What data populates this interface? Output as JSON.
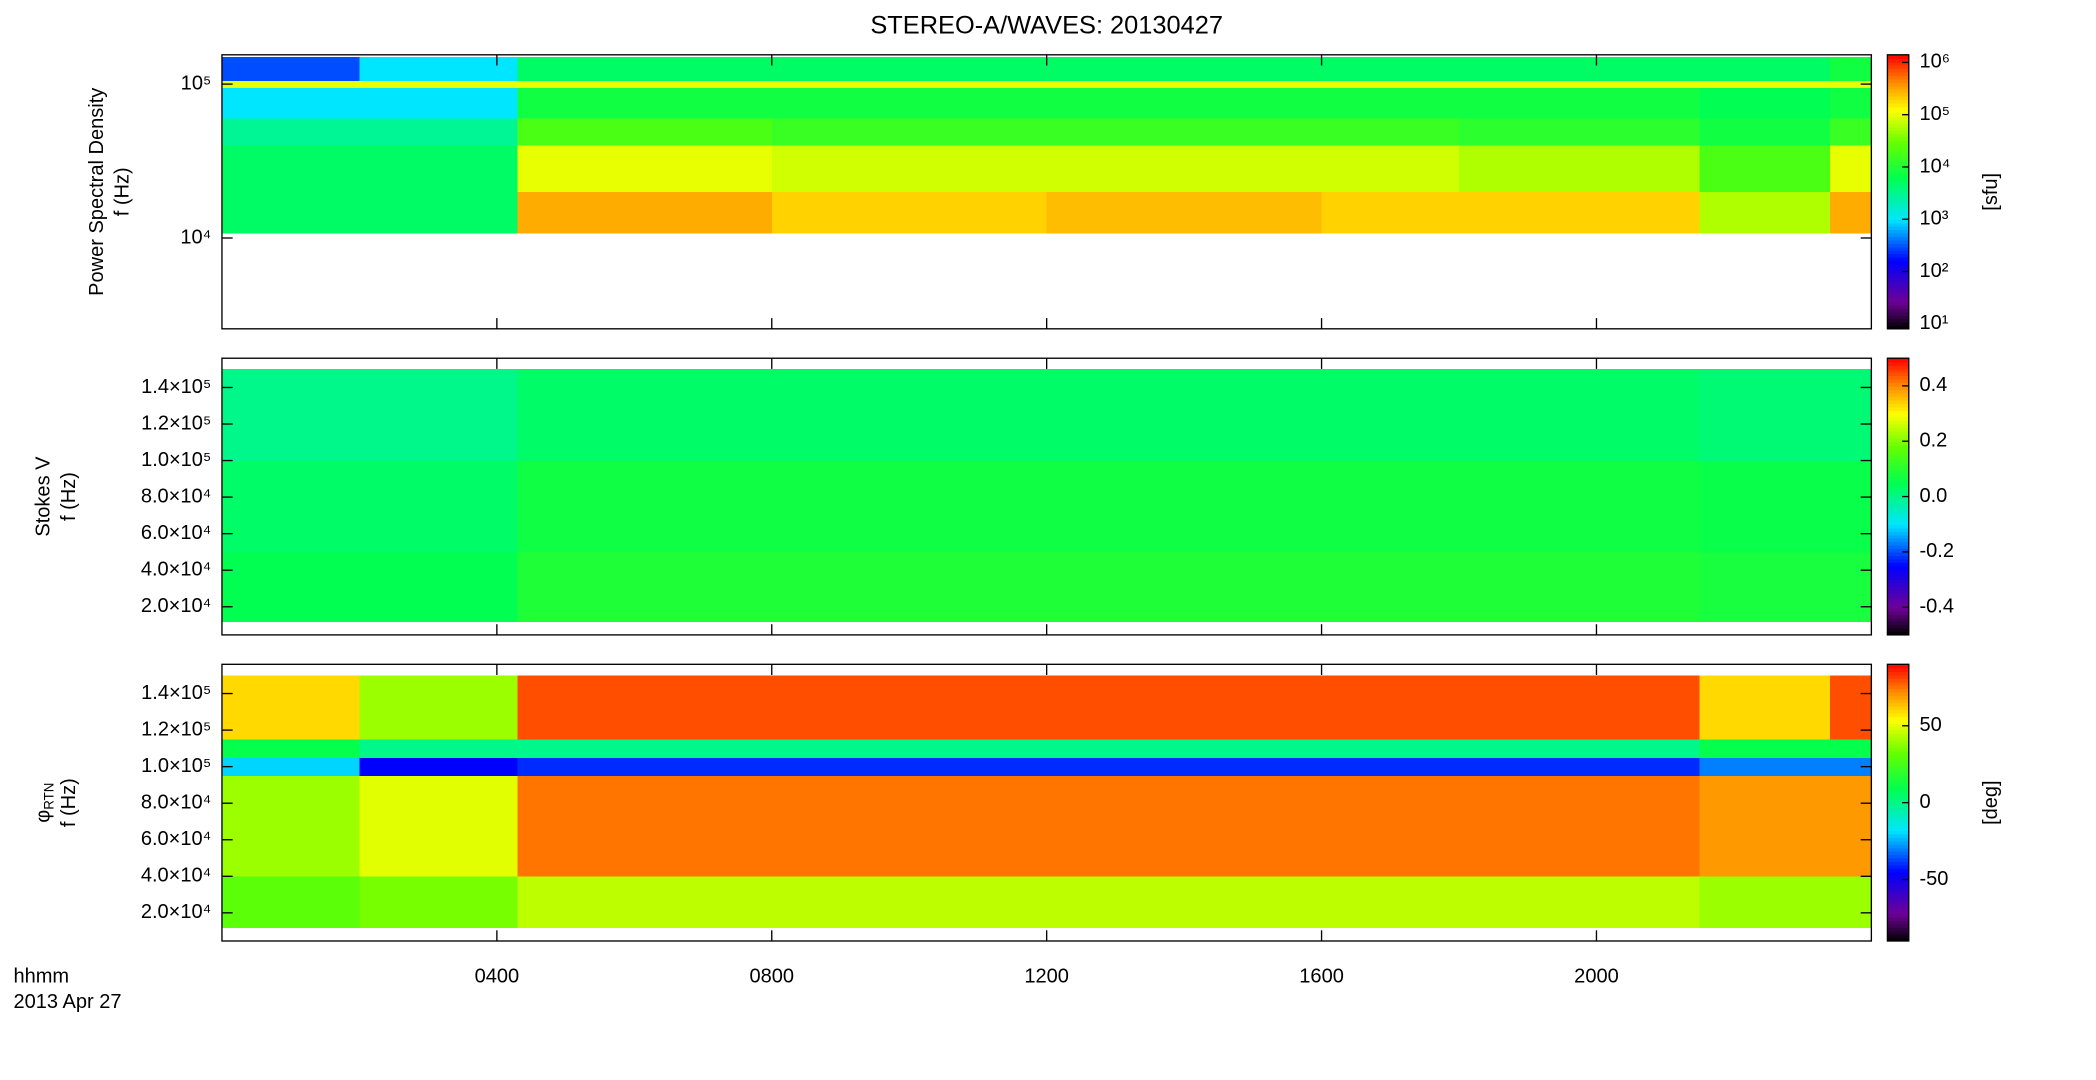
{
  "chart_data": [
    {
      "type": "spectrogram",
      "title": "STEREO-A/WAVES: 20130427",
      "ylabel": [
        "Power Spectral Density",
        "f (Hz)"
      ],
      "log_y": true,
      "ylim": [
        2570,
        155000
      ],
      "yticks": [
        {
          "value": 10000,
          "label": "10⁴"
        },
        {
          "value": 100000,
          "label": "10⁵"
        }
      ],
      "x_edges": [
        0,
        2,
        4.3,
        8,
        12,
        16,
        18,
        21.5,
        23.4,
        24
      ],
      "y_edges": [
        10800,
        20000,
        40000,
        60000,
        95000,
        105000,
        150000
      ],
      "values": [
        [
          5000,
          5000,
          300000,
          200000,
          250000,
          200000,
          200000,
          60000,
          300000
        ],
        [
          5000,
          5000,
          100000,
          80000,
          80000,
          80000,
          60000,
          20000,
          100000
        ],
        [
          3000,
          3000,
          20000,
          15000,
          15000,
          15000,
          12000,
          8000,
          15000
        ],
        [
          1000,
          1000,
          8000,
          8000,
          8000,
          8000,
          8000,
          6000,
          8000
        ],
        [
          100000,
          100000,
          100000,
          100000,
          100000,
          100000,
          100000,
          100000,
          100000
        ],
        [
          300,
          1000,
          5000,
          5000,
          5000,
          5000,
          5000,
          5000,
          8000
        ]
      ],
      "colorbar": {
        "label": "[sfu]",
        "log": true,
        "lim": [
          8,
          1400000
        ],
        "ticks": [
          {
            "value": 10,
            "label": "10¹"
          },
          {
            "value": 100,
            "label": "10²"
          },
          {
            "value": 1000,
            "label": "10³"
          },
          {
            "value": 10000,
            "label": "10⁴"
          },
          {
            "value": 100000,
            "label": "10⁵"
          },
          {
            "value": 1000000,
            "label": "10⁶"
          }
        ]
      }
    },
    {
      "type": "spectrogram",
      "ylabel": [
        "Stokes V",
        "f (Hz)"
      ],
      "log_y": false,
      "ylim": [
        4600,
        156000
      ],
      "yticks": [
        {
          "value": 20000,
          "label": "2.0×10⁴"
        },
        {
          "value": 40000,
          "label": "4.0×10⁴"
        },
        {
          "value": 60000,
          "label": "6.0×10⁴"
        },
        {
          "value": 80000,
          "label": "8.0×10⁴"
        },
        {
          "value": 100000,
          "label": "1.0×10⁵"
        },
        {
          "value": 120000,
          "label": "1.2×10⁵"
        },
        {
          "value": 140000,
          "label": "1.4×10⁵"
        }
      ],
      "x_edges": [
        0,
        2,
        4.3,
        8,
        12,
        16,
        18,
        21.5,
        23.4,
        24
      ],
      "y_edges": [
        12000,
        50000,
        100000,
        150000
      ],
      "values": [
        [
          0.05,
          0.05,
          0.09,
          0.09,
          0.09,
          0.09,
          0.09,
          0.08,
          0.08
        ],
        [
          0.03,
          0.03,
          0.07,
          0.07,
          0.07,
          0.07,
          0.07,
          0.06,
          0.06
        ],
        [
          0.0,
          0.0,
          0.03,
          0.03,
          0.03,
          0.03,
          0.03,
          0.02,
          0.02
        ]
      ],
      "colorbar": {
        "label": "",
        "log": false,
        "lim": [
          -0.5,
          0.5
        ],
        "ticks": [
          -0.4,
          -0.2,
          {
            "value": 0,
            "label": "0.0"
          },
          0.2,
          0.4
        ]
      }
    },
    {
      "type": "spectrogram",
      "ylabel": [
        "φ",
        "f (Hz)"
      ],
      "ylabel_sub": "RTN",
      "log_y": false,
      "ylim": [
        4600,
        156000
      ],
      "yticks": [
        {
          "value": 20000,
          "label": "2.0×10⁴"
        },
        {
          "value": 40000,
          "label": "4.0×10⁴"
        },
        {
          "value": 60000,
          "label": "6.0×10⁴"
        },
        {
          "value": 80000,
          "label": "8.0×10⁴"
        },
        {
          "value": 100000,
          "label": "1.0×10⁵"
        },
        {
          "value": 120000,
          "label": "1.2×10⁵"
        },
        {
          "value": 140000,
          "label": "1.4×10⁵"
        }
      ],
      "x_edges": [
        0,
        2,
        4.3,
        8,
        12,
        16,
        18,
        21.5,
        23.4,
        24
      ],
      "y_edges": [
        12000,
        40000,
        95000,
        105000,
        115000,
        150000
      ],
      "values": [
        [
          30,
          35,
          45,
          45,
          45,
          45,
          45,
          40,
          40
        ],
        [
          40,
          50,
          75,
          75,
          75,
          75,
          75,
          70,
          70
        ],
        [
          -20,
          -45,
          -40,
          -40,
          -40,
          -40,
          -40,
          -30,
          -30
        ],
        [
          10,
          0,
          0,
          0,
          0,
          0,
          0,
          10,
          10
        ],
        [
          60,
          40,
          80,
          80,
          80,
          80,
          80,
          60,
          80
        ]
      ],
      "colorbar": {
        "label": "[deg]",
        "log": false,
        "lim": [
          -90,
          90
        ],
        "ticks": [
          -50,
          0,
          50
        ]
      },
      "xlim": [
        0,
        24
      ],
      "xticks": [
        {
          "value": 4,
          "label": "0400"
        },
        {
          "value": 8,
          "label": "0800"
        },
        {
          "value": 12,
          "label": "1200"
        },
        {
          "value": 16,
          "label": "1600"
        },
        {
          "value": 20,
          "label": "2000"
        }
      ],
      "xlabel": "hhmm",
      "date_label": "2013 Apr 27"
    }
  ]
}
